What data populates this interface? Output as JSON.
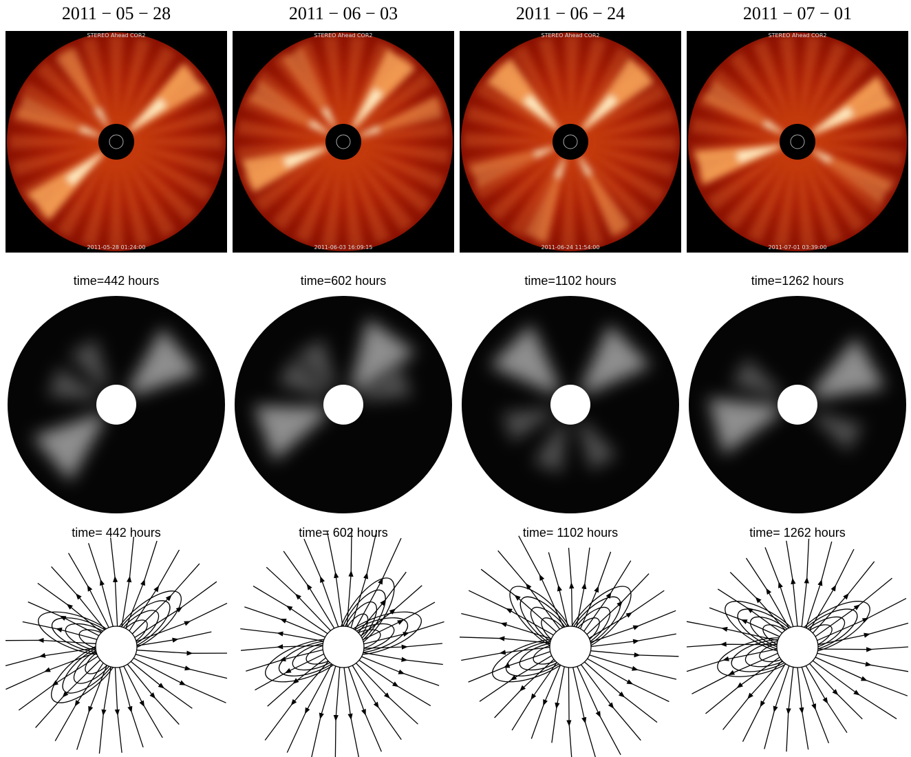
{
  "columns": [
    {
      "date": "2011 − 05 − 28",
      "cor2_label": "STEREO Ahead COR2",
      "cor2_timestamp": "2011-05-28 01:24:00",
      "model_title": "time=442 hours",
      "field_title": "time= 442 hours"
    },
    {
      "date": "2011 − 06 − 03",
      "cor2_label": "STEREO Ahead COR2",
      "cor2_timestamp": "2011-06-03 16:09:15",
      "model_title": "time=602 hours",
      "field_title": "time= 602 hours"
    },
    {
      "date": "2011 − 06 − 24",
      "cor2_label": "STEREO Ahead COR2",
      "cor2_timestamp": "2011-06-24 11:54:00",
      "model_title": "time=1102 hours",
      "field_title": "time= 1102 hours"
    },
    {
      "date": "2011 − 07 − 01",
      "cor2_label": "STEREO Ahead COR2",
      "cor2_timestamp": "2011-07-01 03:39:00",
      "model_title": "time=1262 hours",
      "field_title": "time= 1262 hours"
    }
  ]
}
